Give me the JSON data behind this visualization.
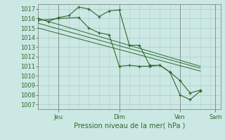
{
  "background_color": "#cce8e4",
  "grid_color": "#aaccca",
  "line_color": "#2d6a2d",
  "title": "Pression niveau de la mer( hPa )",
  "ylim": [
    1006.5,
    1017.5
  ],
  "yticks": [
    1007,
    1008,
    1009,
    1010,
    1011,
    1012,
    1013,
    1014,
    1015,
    1016,
    1017
  ],
  "xlim": [
    0,
    216
  ],
  "xtick_positions": [
    24,
    96,
    168,
    210
  ],
  "xtick_labels": [
    "Jeu",
    "Dim",
    "Ven",
    "Sam"
  ],
  "series1_marker": {
    "x": [
      0,
      12,
      24,
      36,
      48,
      60,
      72,
      84,
      96,
      108,
      120,
      132,
      144,
      156,
      168,
      180,
      192
    ],
    "y": [
      1016.0,
      1015.7,
      1016.1,
      1016.3,
      1017.2,
      1017.0,
      1016.2,
      1016.8,
      1016.9,
      1013.2,
      1013.2,
      1011.1,
      1011.1,
      1010.4,
      1009.5,
      1008.2,
      1008.5
    ]
  },
  "series2_marker": {
    "x": [
      0,
      24,
      48,
      60,
      72,
      84,
      96,
      108,
      120,
      132,
      144,
      156,
      168,
      180,
      192
    ],
    "y": [
      1015.8,
      1016.0,
      1016.1,
      1015.0,
      1014.5,
      1014.3,
      1011.0,
      1011.1,
      1011.0,
      1011.0,
      1011.1,
      1010.4,
      1008.0,
      1007.5,
      1008.4
    ]
  },
  "series3": {
    "x": [
      0,
      192
    ],
    "y": [
      1016.0,
      1011.0
    ]
  },
  "series4": {
    "x": [
      0,
      192
    ],
    "y": [
      1015.5,
      1010.8
    ]
  },
  "series5": {
    "x": [
      0,
      192
    ],
    "y": [
      1015.0,
      1010.5
    ]
  }
}
